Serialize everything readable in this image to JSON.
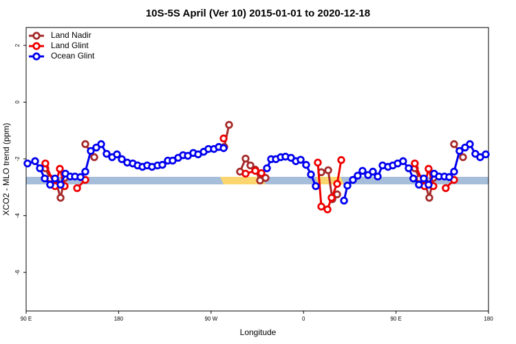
{
  "chart_data": {
    "type": "line",
    "title": "10S-5S April (Ver 10)   2015-01-01 to 2020-12-18",
    "xlabel": "Longitude",
    "ylabel": "XCO2 - MLO trend (ppm)",
    "xlim": [
      90,
      540
    ],
    "ylim": [
      -7.36,
      2.63
    ],
    "xticks": [
      {
        "value": 90,
        "label": "90 E"
      },
      180,
      {
        "value": 270,
        "label": "90 W"
      },
      {
        "value": 360,
        "label": "0"
      },
      {
        "value": 450,
        "label": "90 E"
      },
      {
        "value": 540,
        "label": "180"
      }
    ],
    "yticks": [
      -6,
      -4,
      -2,
      0,
      2
    ],
    "legend": "top-left",
    "series": [
      {
        "name": "Land Nadir",
        "color": "#a52a2a",
        "x": [
          108.7,
          113.4,
          118.8,
          123.5,
          127.5,
          null,
          147.6,
          156.3,
          null,
          282.8,
          287.5,
          null,
          298.2,
          303.6,
          308.3,
          313,
          317.7,
          323,
          null,
          377.3,
          384,
          388,
          392.7,
          null,
          468.3,
          473,
          477.7,
          482.4,
          486.4,
          null,
          506.5,
          515.2
        ],
        "values": [
          -2.33,
          -2.69,
          -2.79,
          -3.37,
          -2.67,
          null,
          -1.48,
          -1.94,
          null,
          -1.58,
          -0.8,
          null,
          -2.45,
          -1.99,
          -2.23,
          -2.38,
          -2.76,
          -2.67,
          null,
          -2.47,
          -2.4,
          -3.42,
          -3.25,
          null,
          -2.33,
          -2.69,
          -2.79,
          -3.37,
          -2.67,
          null,
          -1.48,
          -1.94
        ]
      },
      {
        "name": "Land Glint",
        "color": "#ee0000",
        "x": [
          108.7,
          118.1,
          122.8,
          127.5,
          null,
          139.6,
          147.6,
          null,
          282.2,
          null,
          303.6,
          313,
          319,
          null,
          373.9,
          377.3,
          383.3,
          387.3,
          392.7,
          396.7,
          null,
          468.3,
          477.7,
          481.7,
          486.4,
          null,
          498.4,
          506.5
        ],
        "values": [
          -2.16,
          -2.96,
          -2.35,
          -2.96,
          null,
          -3.03,
          -2.74,
          null,
          -1.28,
          null,
          -2.52,
          -2.42,
          -2.5,
          null,
          -2.13,
          -3.68,
          -3.78,
          -3.37,
          -2.88,
          -2.04,
          null,
          -2.16,
          -2.96,
          -2.35,
          -2.96,
          null,
          -3.03,
          -2.74
        ]
      },
      {
        "name": "Ocean Glint",
        "color": "#0000ee",
        "x": [
          91.3,
          98.7,
          103.4,
          108.1,
          113.4,
          118.1,
          123.5,
          128.2,
          132.9,
          137.5,
          142.9,
          147.6,
          152.9,
          158.3,
          163,
          168.3,
          173.7,
          178.4,
          183.1,
          188.4,
          193.8,
          198.5,
          203.2,
          207.8,
          212.5,
          217.9,
          222.6,
          227.9,
          232.6,
          238,
          242.7,
          247.4,
          252.7,
          257.4,
          262.8,
          267.4,
          272.8,
          277.5,
          282.2,
          null,
          324.4,
          328.4,
          333.1,
          337.8,
          342.4,
          347.8,
          352.5,
          357.2,
          362.5,
          367.2,
          371.9,
          null,
          399.4,
          402.7,
          408.1,
          412.7,
          417.4,
          422.8,
          427.5,
          432.2,
          436.9,
          442.2,
          446.9,
          451.6,
          456.9,
          462.3,
          466.9,
          472.3,
          477,
          481.7,
          487.1,
          491.8,
          497.1,
          501.8,
          506.5,
          511.8,
          517.2,
          521.9,
          527.2,
          531.9,
          537.3
        ],
        "values": [
          -2.16,
          -2.08,
          -2.33,
          -2.69,
          -2.91,
          -2.69,
          -2.91,
          -2.52,
          -2.62,
          -2.62,
          -2.64,
          -2.45,
          -1.72,
          -1.6,
          -1.48,
          -1.82,
          -1.94,
          -1.84,
          -2.01,
          -2.13,
          -2.16,
          -2.23,
          -2.28,
          -2.23,
          -2.28,
          -2.23,
          -2.21,
          -2.06,
          -2.06,
          -1.96,
          -1.87,
          -1.89,
          -1.79,
          -1.84,
          -1.75,
          -1.65,
          -1.65,
          -1.58,
          -1.62,
          null,
          -2.33,
          -2.01,
          -2.01,
          -1.94,
          -1.92,
          -1.96,
          -2.08,
          -2.03,
          -2.21,
          -2.55,
          -2.96,
          null,
          -3.47,
          -2.94,
          -2.74,
          -2.59,
          -2.42,
          -2.57,
          -2.45,
          -2.62,
          -2.23,
          -2.28,
          -2.23,
          -2.16,
          -2.08,
          -2.33,
          -2.69,
          -2.91,
          -2.69,
          -2.91,
          -2.52,
          -2.62,
          -2.62,
          -2.64,
          -2.45,
          -1.72,
          -1.6,
          -1.48,
          -1.82,
          -1.94,
          -1.84
        ]
      }
    ]
  }
}
